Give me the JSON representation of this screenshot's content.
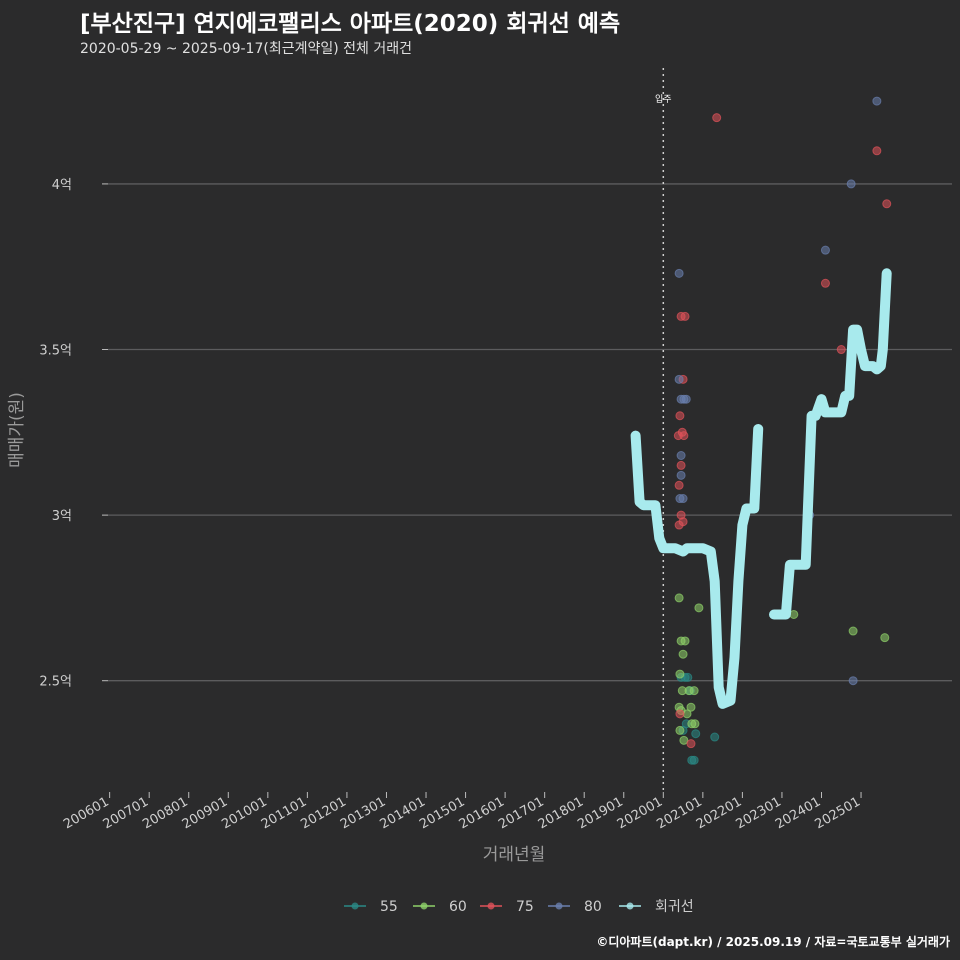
{
  "header": {
    "title": "[부산진구] 연지에코팰리스 아파트(2020) 회귀선 예측",
    "subtitle": "2020-05-29 ~ 2025-09-17(최근계약일) 전체 거래건",
    "caption": "©디아파트(dapt.kr) / 2025.09.19 / 자료=국토교통부 실거래가"
  },
  "chart_data": {
    "type": "scatter",
    "xlabel": "거래년월",
    "ylabel": "매매가(원)",
    "x_ticks": [
      "200601",
      "200701",
      "200801",
      "200901",
      "201001",
      "201101",
      "201201",
      "201301",
      "201401",
      "201501",
      "201601",
      "201701",
      "201801",
      "201901",
      "202001",
      "202101",
      "202201",
      "202301",
      "202401",
      "202501"
    ],
    "y_ticks": [
      {
        "value": 2.5,
        "label": "2.5억"
      },
      {
        "value": 3.0,
        "label": "3억"
      },
      {
        "value": 3.5,
        "label": "3.5억"
      },
      {
        "value": 4.0,
        "label": "4억"
      }
    ],
    "xlim": [
      2005.2,
      2027.3
    ],
    "ylim": [
      2.17,
      4.35
    ],
    "grid": true,
    "legend_position": "bottom",
    "annotation": {
      "x": 2020.0,
      "label": "입주"
    },
    "colors": {
      "55": "#2a8a86",
      "60": "#8fd26a",
      "75": "#e0525a",
      "80": "#6a7fae",
      "regression": "#a8eaed"
    },
    "series": [
      {
        "name": "55",
        "points": [
          [
            2020.45,
            2.51
          ],
          [
            2020.5,
            2.35
          ],
          [
            2020.55,
            2.51
          ],
          [
            2020.62,
            2.51
          ],
          [
            2020.68,
            2.47
          ],
          [
            2020.72,
            2.26
          ],
          [
            2020.78,
            2.26
          ],
          [
            2020.82,
            2.34
          ],
          [
            2021.3,
            2.33
          ],
          [
            2020.58,
            2.37
          ]
        ]
      },
      {
        "name": "60",
        "points": [
          [
            2020.4,
            2.75
          ],
          [
            2020.45,
            2.62
          ],
          [
            2020.5,
            2.58
          ],
          [
            2020.42,
            2.52
          ],
          [
            2020.48,
            2.47
          ],
          [
            2020.4,
            2.42
          ],
          [
            2020.45,
            2.41
          ],
          [
            2020.52,
            2.32
          ],
          [
            2020.6,
            2.4
          ],
          [
            2020.65,
            2.47
          ],
          [
            2020.7,
            2.42
          ],
          [
            2020.72,
            2.37
          ],
          [
            2020.78,
            2.47
          ],
          [
            2020.8,
            2.37
          ],
          [
            2020.9,
            2.72
          ],
          [
            2020.42,
            2.35
          ],
          [
            2020.55,
            2.62
          ],
          [
            2023.3,
            2.7
          ],
          [
            2024.8,
            2.65
          ],
          [
            2025.6,
            2.63
          ]
        ]
      },
      {
        "name": "75",
        "points": [
          [
            2020.45,
            3.6
          ],
          [
            2020.5,
            3.41
          ],
          [
            2020.42,
            3.3
          ],
          [
            2020.48,
            3.25
          ],
          [
            2020.52,
            3.24
          ],
          [
            2020.45,
            3.15
          ],
          [
            2020.4,
            3.09
          ],
          [
            2020.45,
            3.0
          ],
          [
            2020.4,
            2.97
          ],
          [
            2020.5,
            2.98
          ],
          [
            2020.42,
            2.4
          ],
          [
            2020.7,
            2.31
          ],
          [
            2021.35,
            4.2
          ],
          [
            2024.1,
            3.7
          ],
          [
            2024.5,
            3.5
          ],
          [
            2025.4,
            4.1
          ],
          [
            2025.65,
            3.94
          ],
          [
            2020.55,
            3.6
          ],
          [
            2020.38,
            3.24
          ]
        ]
      },
      {
        "name": "80",
        "points": [
          [
            2020.4,
            3.73
          ],
          [
            2020.45,
            3.35
          ],
          [
            2020.52,
            3.35
          ],
          [
            2020.58,
            3.35
          ],
          [
            2020.4,
            3.41
          ],
          [
            2020.45,
            3.18
          ],
          [
            2020.42,
            3.05
          ],
          [
            2020.5,
            3.05
          ],
          [
            2020.45,
            3.12
          ],
          [
            2023.7,
            3.0
          ],
          [
            2024.1,
            3.8
          ],
          [
            2024.75,
            4.0
          ],
          [
            2025.4,
            4.25
          ],
          [
            2024.8,
            2.5
          ]
        ]
      }
    ],
    "regression": {
      "name": "회귀선",
      "segments": [
        [
          [
            2019.3,
            3.24
          ],
          [
            2019.4,
            3.04
          ],
          [
            2019.5,
            3.03
          ],
          [
            2019.8,
            3.03
          ],
          [
            2019.9,
            2.93
          ],
          [
            2020.0,
            2.9
          ],
          [
            2020.3,
            2.9
          ],
          [
            2020.5,
            2.89
          ],
          [
            2020.6,
            2.9
          ],
          [
            2021.0,
            2.9
          ],
          [
            2021.2,
            2.89
          ],
          [
            2021.3,
            2.8
          ],
          [
            2021.4,
            2.48
          ],
          [
            2021.5,
            2.43
          ],
          [
            2021.7,
            2.44
          ],
          [
            2021.8,
            2.57
          ],
          [
            2021.9,
            2.8
          ],
          [
            2022.0,
            2.97
          ],
          [
            2022.1,
            3.02
          ],
          [
            2022.3,
            3.02
          ],
          [
            2022.4,
            3.26
          ]
        ],
        [
          [
            2022.8,
            2.7
          ],
          [
            2022.9,
            2.7
          ],
          [
            2023.1,
            2.7
          ],
          [
            2023.2,
            2.85
          ],
          [
            2023.4,
            2.85
          ],
          [
            2023.5,
            2.85
          ],
          [
            2023.6,
            2.85
          ],
          [
            2023.75,
            3.3
          ],
          [
            2023.85,
            3.3
          ],
          [
            2024.0,
            3.35
          ],
          [
            2024.1,
            3.31
          ],
          [
            2024.25,
            3.31
          ],
          [
            2024.5,
            3.31
          ],
          [
            2024.6,
            3.36
          ],
          [
            2024.7,
            3.36
          ],
          [
            2024.8,
            3.56
          ],
          [
            2024.9,
            3.56
          ],
          [
            2025.0,
            3.5
          ],
          [
            2025.1,
            3.45
          ],
          [
            2025.3,
            3.45
          ],
          [
            2025.4,
            3.44
          ],
          [
            2025.5,
            3.45
          ],
          [
            2025.55,
            3.5
          ],
          [
            2025.65,
            3.73
          ]
        ]
      ]
    }
  }
}
